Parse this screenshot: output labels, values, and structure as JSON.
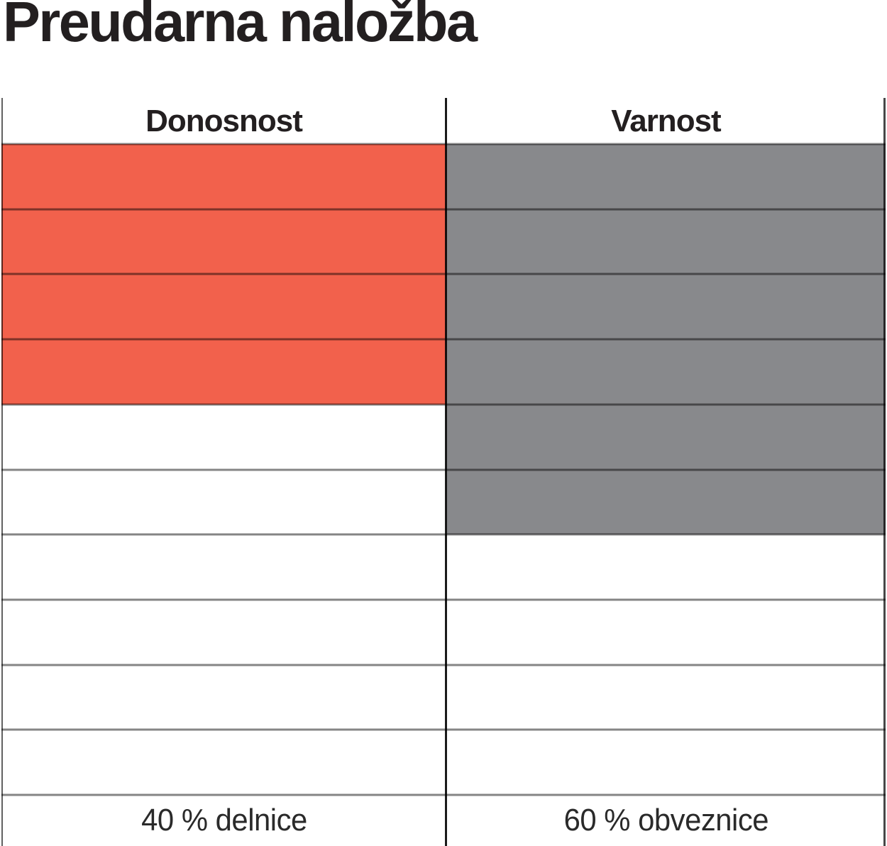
{
  "title": "Preudarna naložba",
  "colors": {
    "fill_red": "#F2614C",
    "fill_gray": "#88898C",
    "text": "#231F20",
    "grid_line": "rgba(0,0,0,0.48)"
  },
  "table": {
    "rows_total": 10,
    "columns": [
      {
        "id": "donosnost",
        "header": "Donosnost",
        "filled_cells": 4,
        "fill_color": "#F2614C",
        "footer_label": "40 % delnice"
      },
      {
        "id": "varnost",
        "header": "Varnost",
        "filled_cells": 6,
        "fill_color": "#88898C",
        "footer_label": "60 % obveznice"
      }
    ]
  },
  "chart_data": {
    "type": "bar",
    "title": "Preudarna naložba",
    "categories": [
      "Donosnost",
      "Varnost"
    ],
    "values": [
      4,
      6
    ],
    "scale_max": 10,
    "orientation": "columns-filled-from-top",
    "value_labels": [
      "40 % delnice",
      "60 % obveznice"
    ],
    "series_colors": [
      "#F2614C",
      "#88898C"
    ],
    "grid": true,
    "legend": "none",
    "note_values_meaning": "Donosnost = 4 of 10 cells filled red (40 % delnice), Varnost = 6 of 10 cells filled gray (60 % obveznice)"
  }
}
